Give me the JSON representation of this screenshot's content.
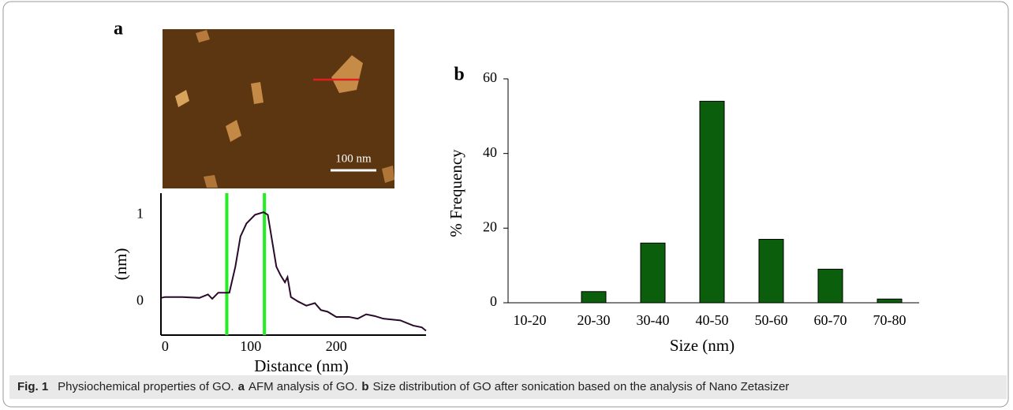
{
  "chart_data": [
    {
      "type": "line",
      "label": "a",
      "x_label": "Distance (nm)",
      "y_label": "(nm)",
      "x": [
        -5,
        0,
        20,
        40,
        50,
        55,
        62,
        75,
        82,
        88,
        95,
        105,
        115,
        120,
        125,
        130,
        135,
        140,
        143,
        147,
        155,
        165,
        175,
        182,
        190,
        200,
        215,
        225,
        235,
        245,
        255,
        275,
        290,
        300,
        305
      ],
      "values": [
        0.04,
        0.05,
        0.05,
        0.04,
        0.08,
        0.03,
        0.1,
        0.1,
        0.4,
        0.75,
        0.9,
        1.0,
        1.03,
        1.0,
        0.7,
        0.4,
        0.3,
        0.22,
        0.28,
        0.05,
        0.0,
        -0.05,
        -0.02,
        -0.1,
        -0.12,
        -0.18,
        -0.18,
        -0.2,
        -0.15,
        -0.17,
        -0.2,
        -0.22,
        -0.28,
        -0.3,
        -0.34
      ],
      "color": "#2a0a2a",
      "vlines": [
        72,
        116
      ],
      "vline_color": "#22ee22",
      "xlim": [
        -5,
        305
      ],
      "xticks": [
        0,
        100,
        200
      ],
      "ylim": [
        -0.39,
        1.25
      ],
      "yticks": [
        0,
        1
      ]
    },
    {
      "type": "bar",
      "label": "b",
      "x_label": "Size (nm)",
      "y_label": "% Frequency",
      "categories": [
        "10-20",
        "20-30",
        "30-40",
        "40-50",
        "50-60",
        "60-70",
        "70-80"
      ],
      "values": [
        0,
        3,
        16,
        54,
        17,
        9,
        1
      ],
      "color": "#0b5e0b",
      "ylim": [
        0,
        60
      ],
      "yticks": [
        0,
        20,
        40,
        60
      ]
    }
  ],
  "afm_image": {
    "scale_bar": "100 nm"
  },
  "caption": [
    {
      "text": "Fig. 1",
      "bold": true
    },
    {
      "text": "Physiochemical properties of GO.",
      "bold": false
    },
    {
      "text": "a",
      "bold": true
    },
    {
      "text": "AFM analysis of GO.",
      "bold": false
    },
    {
      "text": "b",
      "bold": true
    },
    {
      "text": "Size distribution of GO after sonication based on the analysis of Nano Zetasizer",
      "bold": false
    }
  ]
}
